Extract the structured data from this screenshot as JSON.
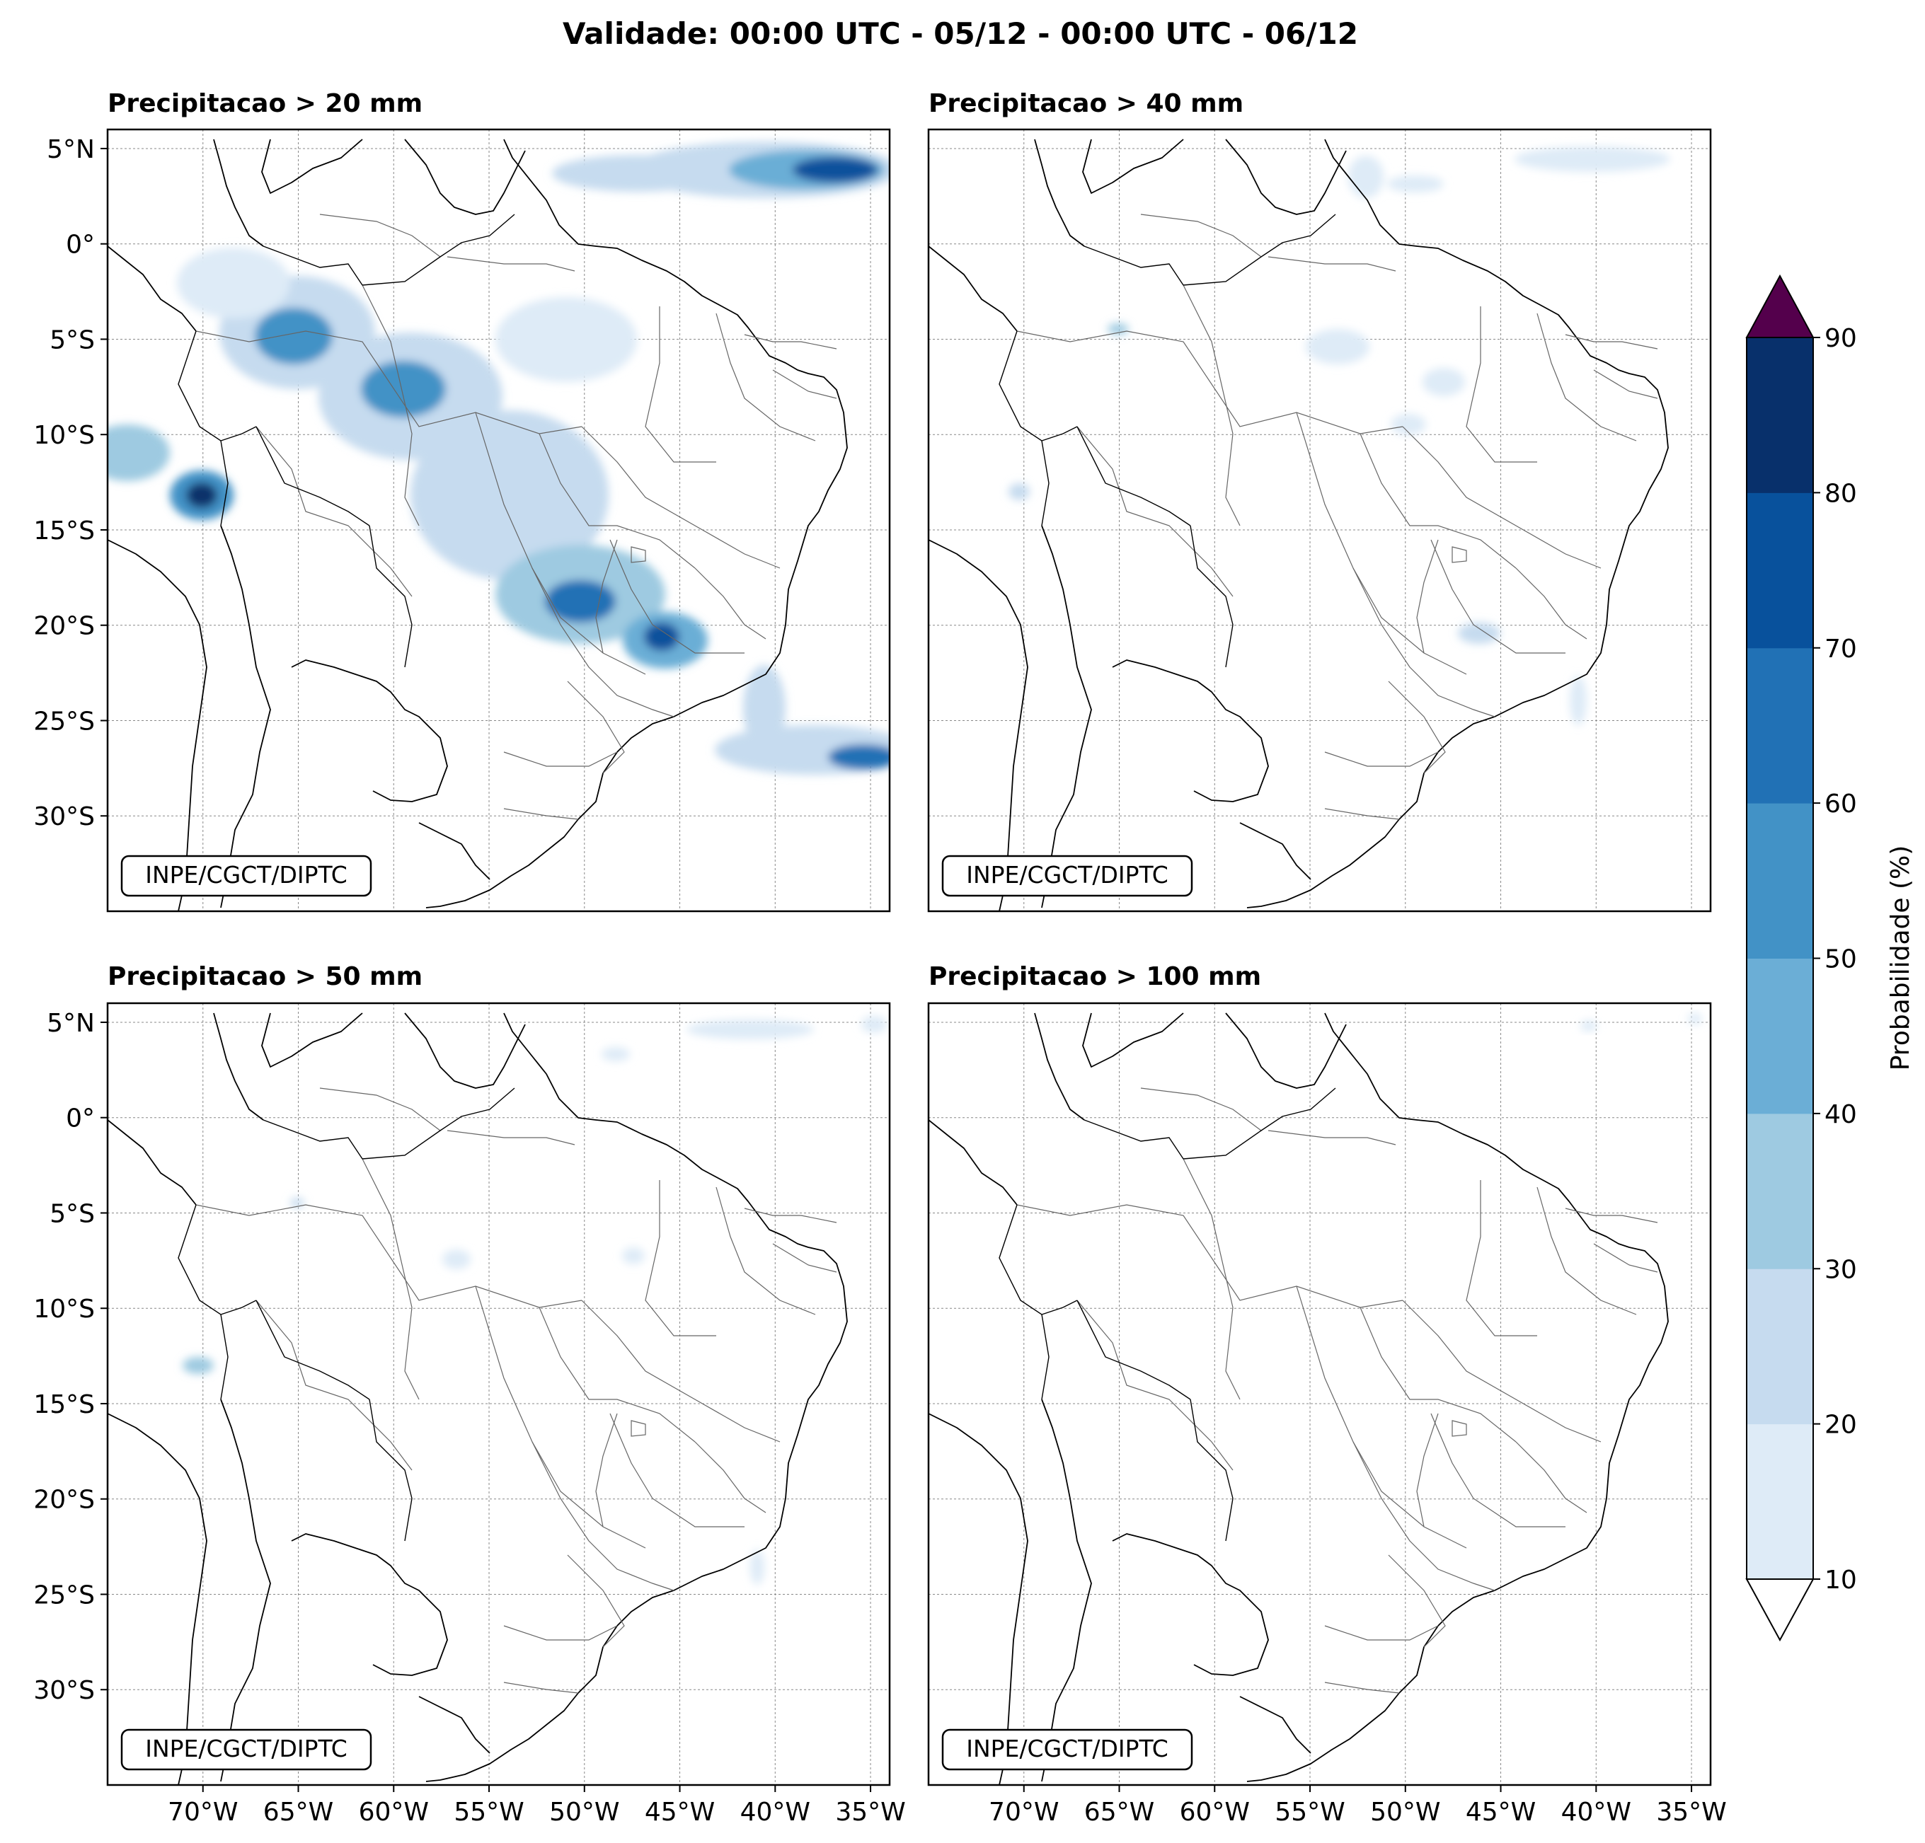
{
  "title": "Validade: 00:00 UTC - 05/12 - 00:00 UTC - 06/12",
  "panels": [
    {
      "id": "p20",
      "title": "Precipitacao > 20 mm",
      "credit": "INPE/CGCT/DIPTC"
    },
    {
      "id": "p40",
      "title": "Precipitacao > 40 mm",
      "credit": "INPE/CGCT/DIPTC"
    },
    {
      "id": "p50",
      "title": "Precipitacao > 50 mm",
      "credit": "INPE/CGCT/DIPTC"
    },
    {
      "id": "p100",
      "title": "Precipitacao > 100 mm",
      "credit": "INPE/CGCT/DIPTC"
    }
  ],
  "lat_labels": [
    "5°N",
    "0°",
    "5°S",
    "10°S",
    "15°S",
    "20°S",
    "25°S",
    "30°S"
  ],
  "lon_labels": [
    "70°W",
    "65°W",
    "60°W",
    "55°W",
    "50°W",
    "45°W",
    "40°W",
    "35°W"
  ],
  "extent": {
    "lon_min": -75,
    "lon_max": -34,
    "lat_min": -35,
    "lat_max": 6
  },
  "colorbar": {
    "label": "Probabilidade (%)",
    "ticks": [
      "10",
      "20",
      "30",
      "40",
      "50",
      "60",
      "70",
      "80",
      "90"
    ],
    "colors": [
      "#deebf7",
      "#c6dbef",
      "#9ecae1",
      "#6baed6",
      "#4292c6",
      "#2171b5",
      "#08519c",
      "#08306b"
    ],
    "over_color": "#54004c",
    "under_color": "#ffffff"
  }
}
